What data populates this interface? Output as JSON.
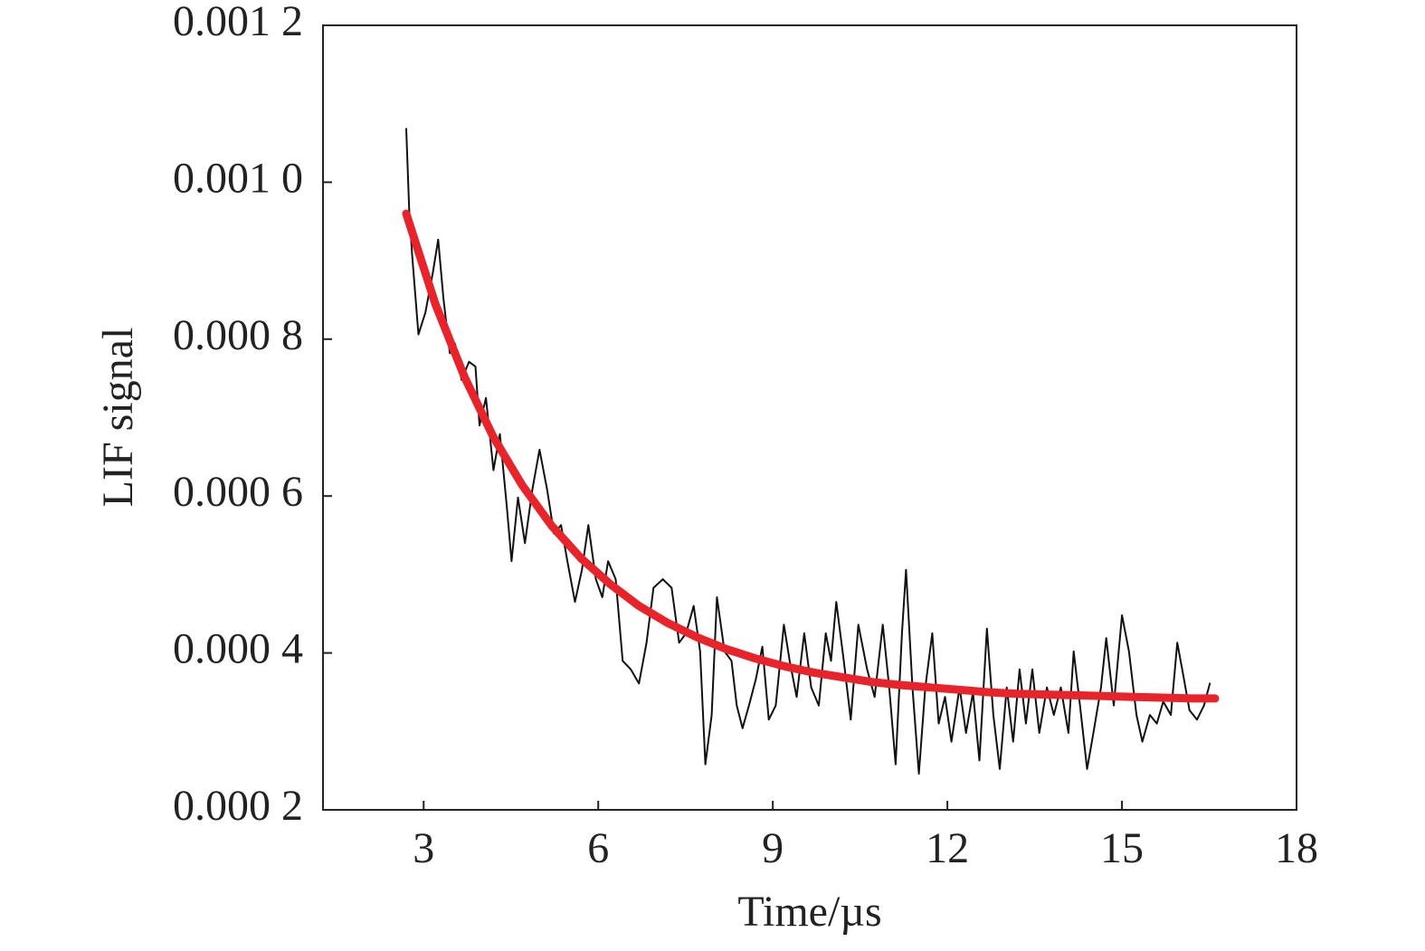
{
  "chart_data": {
    "type": "line",
    "x_label": "Time/µs",
    "y_label": "LIF signal",
    "xlim": [
      1.27,
      18
    ],
    "xticks": [
      3,
      6,
      9,
      12,
      15,
      18
    ],
    "ylim": [
      0.0002,
      0.0012
    ],
    "yticks": [
      {
        "value": 0.0002,
        "label": "0.000 2"
      },
      {
        "value": 0.0004,
        "label": "0.000 4"
      },
      {
        "value": 0.0006,
        "label": "0.000 6"
      },
      {
        "value": 0.0008,
        "label": "0.000 8"
      },
      {
        "value": 0.001,
        "label": "0.001 0"
      },
      {
        "value": 0.0012,
        "label": "0.001 2"
      }
    ],
    "series": [
      {
        "color": "#111111",
        "width": 2,
        "x": [
          2.7,
          2.75,
          2.8,
          2.91,
          3.03,
          3.16,
          3.25,
          3.34,
          3.45,
          3.54,
          3.65,
          3.78,
          3.89,
          3.96,
          4.07,
          4.2,
          4.31,
          4.43,
          4.51,
          4.62,
          4.74,
          4.87,
          4.99,
          5.12,
          5.24,
          5.36,
          5.47,
          5.6,
          5.72,
          5.83,
          5.96,
          6.07,
          6.17,
          6.3,
          6.42,
          6.56,
          6.7,
          6.83,
          6.95,
          7.11,
          7.26,
          7.39,
          7.51,
          7.64,
          7.75,
          7.84,
          7.95,
          8.04,
          8.17,
          8.29,
          8.38,
          8.48,
          8.59,
          8.71,
          8.82,
          8.93,
          9.05,
          9.19,
          9.29,
          9.41,
          9.54,
          9.66,
          9.79,
          9.91,
          10.0,
          10.09,
          10.22,
          10.34,
          10.47,
          10.62,
          10.75,
          10.89,
          11.0,
          11.11,
          11.22,
          11.29,
          11.4,
          11.51,
          11.62,
          11.74,
          11.85,
          11.96,
          12.07,
          12.21,
          12.32,
          12.44,
          12.55,
          12.68,
          12.79,
          12.9,
          13.02,
          13.13,
          13.24,
          13.35,
          13.46,
          13.58,
          13.71,
          13.83,
          13.95,
          14.08,
          14.17,
          14.28,
          14.4,
          14.51,
          14.64,
          14.73,
          14.86,
          15.0,
          15.12,
          15.25,
          15.35,
          15.48,
          15.6,
          15.71,
          15.84,
          15.95,
          16.05,
          16.16,
          16.29,
          16.41,
          16.51
        ],
        "values": [
          0.001068,
          0.000967,
          0.000909,
          0.000806,
          0.000834,
          0.000886,
          0.000927,
          0.000852,
          0.000782,
          0.000794,
          0.000748,
          0.000771,
          0.000765,
          0.00069,
          0.000725,
          0.000633,
          0.000679,
          0.000586,
          0.000517,
          0.000598,
          0.00054,
          0.000609,
          0.000659,
          0.000609,
          0.000552,
          0.000563,
          0.000517,
          0.000465,
          0.000506,
          0.000563,
          0.000494,
          0.000471,
          0.000517,
          0.000494,
          0.00039,
          0.000379,
          0.000361,
          0.000413,
          0.000483,
          0.000494,
          0.000483,
          0.000413,
          0.000425,
          0.00046,
          0.000402,
          0.000258,
          0.000321,
          0.000471,
          0.000402,
          0.00039,
          0.000333,
          0.000304,
          0.000333,
          0.000367,
          0.000408,
          0.000315,
          0.000333,
          0.000436,
          0.00039,
          0.000344,
          0.000425,
          0.000356,
          0.000333,
          0.000425,
          0.00039,
          0.000465,
          0.00039,
          0.000315,
          0.000436,
          0.000379,
          0.000344,
          0.000436,
          0.000356,
          0.000258,
          0.000425,
          0.000506,
          0.000356,
          0.000246,
          0.000356,
          0.000425,
          0.00031,
          0.000344,
          0.000287,
          0.000356,
          0.000298,
          0.00035,
          0.000263,
          0.000431,
          0.000321,
          0.000252,
          0.000356,
          0.000287,
          0.000379,
          0.00031,
          0.000379,
          0.000298,
          0.000356,
          0.000321,
          0.000356,
          0.000298,
          0.000402,
          0.000333,
          0.000252,
          0.000298,
          0.000356,
          0.000419,
          0.000333,
          0.000448,
          0.000402,
          0.000321,
          0.000287,
          0.000321,
          0.00031,
          0.000338,
          0.000321,
          0.000413,
          0.000373,
          0.000327,
          0.000315,
          0.000333,
          0.000361
        ]
      },
      {
        "color": "#e8232a",
        "width": 9,
        "x": [
          2.7,
          3.2,
          3.7,
          4.2,
          4.7,
          5.2,
          5.7,
          6.2,
          6.7,
          7.2,
          7.7,
          8.2,
          8.7,
          9.2,
          9.7,
          10.2,
          10.7,
          11.2,
          11.7,
          12.2,
          12.7,
          13.2,
          13.7,
          14.2,
          14.7,
          15.2,
          15.7,
          16.2,
          16.6
        ],
        "values": [
          0.00096,
          0.000845,
          0.000752,
          0.000675,
          0.000613,
          0.000562,
          0.000521,
          0.000488,
          0.00046,
          0.000438,
          0.00042,
          0.000405,
          0.000393,
          0.000383,
          0.000375,
          0.000369,
          0.000363,
          0.000359,
          0.000356,
          0.000353,
          0.00035,
          0.000348,
          0.000347,
          0.000346,
          0.000345,
          0.000344,
          0.000343,
          0.000342,
          0.000342
        ]
      }
    ]
  }
}
